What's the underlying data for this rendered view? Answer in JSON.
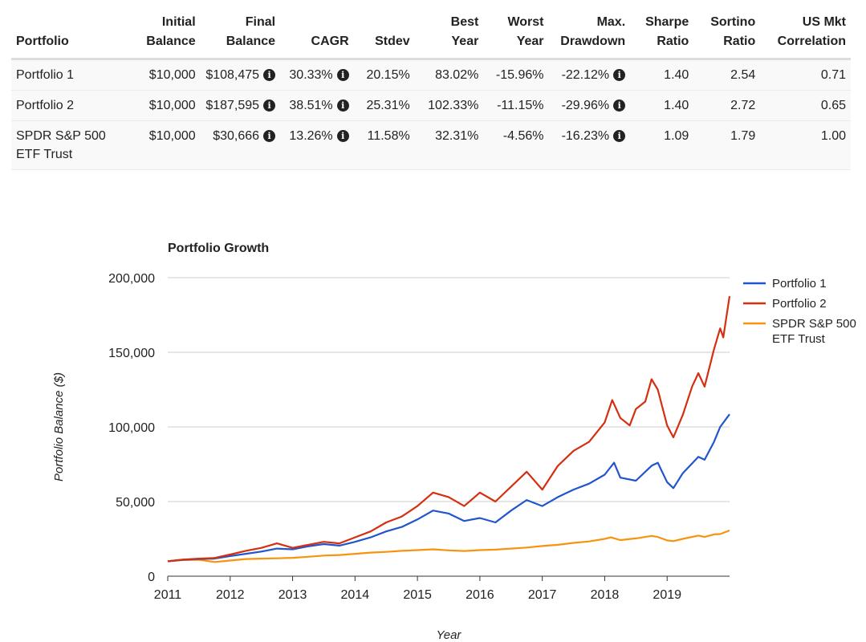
{
  "table": {
    "headers": [
      [
        "Portfolio"
      ],
      [
        "Initial",
        "Balance"
      ],
      [
        "Final",
        "Balance"
      ],
      [
        "CAGR"
      ],
      [
        "Stdev"
      ],
      [
        "Best",
        "Year"
      ],
      [
        "Worst",
        "Year"
      ],
      [
        "Max.",
        "Drawdown"
      ],
      [
        "Sharpe",
        "Ratio"
      ],
      [
        "Sortino",
        "Ratio"
      ],
      [
        "US Mkt",
        "Correlation"
      ]
    ],
    "rows": [
      {
        "name": [
          "Portfolio 1"
        ],
        "initial": "$10,000",
        "final": "$108,475",
        "cagr": "30.33%",
        "stdev": "20.15%",
        "best": "83.02%",
        "worst": "-15.96%",
        "drawdown": "-22.12%",
        "sharpe": "1.40",
        "sortino": "2.54",
        "corr": "0.71"
      },
      {
        "name": [
          "Portfolio 2"
        ],
        "initial": "$10,000",
        "final": "$187,595",
        "cagr": "38.51%",
        "stdev": "25.31%",
        "best": "102.33%",
        "worst": "-11.15%",
        "drawdown": "-29.96%",
        "sharpe": "1.40",
        "sortino": "2.72",
        "corr": "0.65"
      },
      {
        "name": [
          "SPDR S&P 500",
          "ETF Trust"
        ],
        "initial": "$10,000",
        "final": "$30,666",
        "cagr": "13.26%",
        "stdev": "11.58%",
        "best": "32.31%",
        "worst": "-4.56%",
        "drawdown": "-16.23%",
        "sharpe": "1.09",
        "sortino": "1.79",
        "corr": "1.00"
      }
    ]
  },
  "chart_data": {
    "type": "line",
    "title": "Portfolio Growth",
    "xlabel": "Year",
    "ylabel": "Portfolio Balance ($)",
    "x_ticks": [
      "2011",
      "2012",
      "2013",
      "2014",
      "2015",
      "2016",
      "2017",
      "2018",
      "2019"
    ],
    "y_ticks": [
      "0",
      "50,000",
      "100,000",
      "150,000",
      "200,000"
    ],
    "xlim": [
      2011.0,
      2020.0
    ],
    "ylim": [
      0,
      200000
    ],
    "grid": true,
    "legend_position": "right",
    "series": [
      {
        "name": "Portfolio 1",
        "color": "#2155cc",
        "points": [
          [
            2011.0,
            10000
          ],
          [
            2011.25,
            11000
          ],
          [
            2011.5,
            11500
          ],
          [
            2011.75,
            11800
          ],
          [
            2012.0,
            13500
          ],
          [
            2012.25,
            15000
          ],
          [
            2012.5,
            16500
          ],
          [
            2012.75,
            18500
          ],
          [
            2013.0,
            18000
          ],
          [
            2013.25,
            20000
          ],
          [
            2013.5,
            21500
          ],
          [
            2013.75,
            20500
          ],
          [
            2014.0,
            23000
          ],
          [
            2014.25,
            26000
          ],
          [
            2014.5,
            30000
          ],
          [
            2014.75,
            33000
          ],
          [
            2015.0,
            38000
          ],
          [
            2015.25,
            44000
          ],
          [
            2015.5,
            42000
          ],
          [
            2015.75,
            37000
          ],
          [
            2016.0,
            39000
          ],
          [
            2016.25,
            36000
          ],
          [
            2016.5,
            44000
          ],
          [
            2016.75,
            51000
          ],
          [
            2017.0,
            47000
          ],
          [
            2017.25,
            53000
          ],
          [
            2017.5,
            58000
          ],
          [
            2017.75,
            62000
          ],
          [
            2018.0,
            68000
          ],
          [
            2018.15,
            76000
          ],
          [
            2018.25,
            66000
          ],
          [
            2018.5,
            64000
          ],
          [
            2018.75,
            74000
          ],
          [
            2018.85,
            76000
          ],
          [
            2019.0,
            63000
          ],
          [
            2019.1,
            59000
          ],
          [
            2019.25,
            69000
          ],
          [
            2019.5,
            80000
          ],
          [
            2019.6,
            78000
          ],
          [
            2019.75,
            90000
          ],
          [
            2019.85,
            100000
          ],
          [
            2020.0,
            108475
          ]
        ]
      },
      {
        "name": "Portfolio 2",
        "color": "#d42f0f",
        "points": [
          [
            2011.0,
            10000
          ],
          [
            2011.25,
            11200
          ],
          [
            2011.5,
            11800
          ],
          [
            2011.75,
            12200
          ],
          [
            2012.0,
            14500
          ],
          [
            2012.25,
            17000
          ],
          [
            2012.5,
            19000
          ],
          [
            2012.75,
            22000
          ],
          [
            2013.0,
            19000
          ],
          [
            2013.25,
            21000
          ],
          [
            2013.5,
            23000
          ],
          [
            2013.75,
            22000
          ],
          [
            2014.0,
            26000
          ],
          [
            2014.25,
            30000
          ],
          [
            2014.5,
            36000
          ],
          [
            2014.75,
            40000
          ],
          [
            2015.0,
            47000
          ],
          [
            2015.25,
            56000
          ],
          [
            2015.5,
            53000
          ],
          [
            2015.75,
            47000
          ],
          [
            2016.0,
            56000
          ],
          [
            2016.25,
            50000
          ],
          [
            2016.5,
            60000
          ],
          [
            2016.75,
            70000
          ],
          [
            2017.0,
            58000
          ],
          [
            2017.25,
            74000
          ],
          [
            2017.5,
            84000
          ],
          [
            2017.75,
            90000
          ],
          [
            2018.0,
            103000
          ],
          [
            2018.12,
            118000
          ],
          [
            2018.25,
            106000
          ],
          [
            2018.4,
            101000
          ],
          [
            2018.5,
            112000
          ],
          [
            2018.65,
            117000
          ],
          [
            2018.75,
            132000
          ],
          [
            2018.85,
            125000
          ],
          [
            2019.0,
            101000
          ],
          [
            2019.1,
            93000
          ],
          [
            2019.25,
            108000
          ],
          [
            2019.4,
            127000
          ],
          [
            2019.5,
            136000
          ],
          [
            2019.6,
            127000
          ],
          [
            2019.75,
            152000
          ],
          [
            2019.85,
            166000
          ],
          [
            2019.9,
            160000
          ],
          [
            2020.0,
            187595
          ]
        ]
      },
      {
        "name": "SPDR S&P 500\nETF Trust",
        "color": "#f7930e",
        "points": [
          [
            2011.0,
            10000
          ],
          [
            2011.25,
            10800
          ],
          [
            2011.5,
            11000
          ],
          [
            2011.75,
            9500
          ],
          [
            2012.0,
            10500
          ],
          [
            2012.25,
            11500
          ],
          [
            2012.5,
            11800
          ],
          [
            2012.75,
            12000
          ],
          [
            2013.0,
            12300
          ],
          [
            2013.25,
            13000
          ],
          [
            2013.5,
            13800
          ],
          [
            2013.75,
            14200
          ],
          [
            2014.0,
            15000
          ],
          [
            2014.25,
            15800
          ],
          [
            2014.5,
            16300
          ],
          [
            2014.75,
            17000
          ],
          [
            2015.0,
            17500
          ],
          [
            2015.25,
            18000
          ],
          [
            2015.5,
            17300
          ],
          [
            2015.75,
            16900
          ],
          [
            2016.0,
            17500
          ],
          [
            2016.25,
            17800
          ],
          [
            2016.5,
            18500
          ],
          [
            2016.75,
            19200
          ],
          [
            2017.0,
            20200
          ],
          [
            2017.25,
            21000
          ],
          [
            2017.5,
            22300
          ],
          [
            2017.75,
            23300
          ],
          [
            2018.0,
            25000
          ],
          [
            2018.1,
            26000
          ],
          [
            2018.25,
            24200
          ],
          [
            2018.5,
            25300
          ],
          [
            2018.75,
            27000
          ],
          [
            2018.85,
            26300
          ],
          [
            2019.0,
            24000
          ],
          [
            2019.1,
            23500
          ],
          [
            2019.25,
            25000
          ],
          [
            2019.5,
            27200
          ],
          [
            2019.6,
            26300
          ],
          [
            2019.75,
            28000
          ],
          [
            2019.85,
            28200
          ],
          [
            2020.0,
            30666
          ]
        ]
      }
    ]
  }
}
